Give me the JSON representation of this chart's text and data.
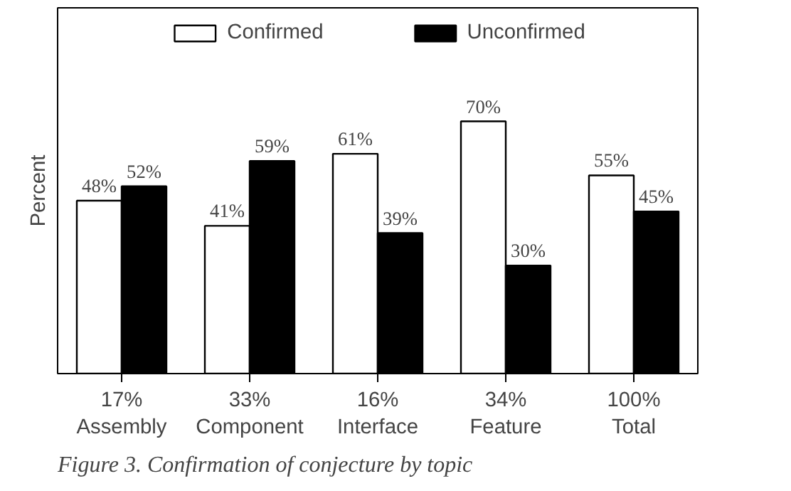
{
  "chart_data": {
    "type": "bar",
    "ylabel": "Percent",
    "categories": [
      "17%\nAssembly",
      "33%\nComponent",
      "16%\nInterface",
      "34%\nFeature",
      "100%\nTotal"
    ],
    "series": [
      {
        "name": "Confirmed",
        "color": "#ffffff",
        "values": [
          48,
          41,
          61,
          70,
          55
        ],
        "value_labels": [
          "48%",
          "41%",
          "61%",
          "70%",
          "55%"
        ]
      },
      {
        "name": "Unconfirmed",
        "color": "#000000",
        "values": [
          52,
          59,
          39,
          30,
          45
        ],
        "value_labels": [
          "52%",
          "59%",
          "39%",
          "30%",
          "45%"
        ]
      }
    ],
    "legend": "top",
    "grid": false,
    "annotations": [
      "Figure 3. Confirmation of conjecture by topic"
    ]
  }
}
